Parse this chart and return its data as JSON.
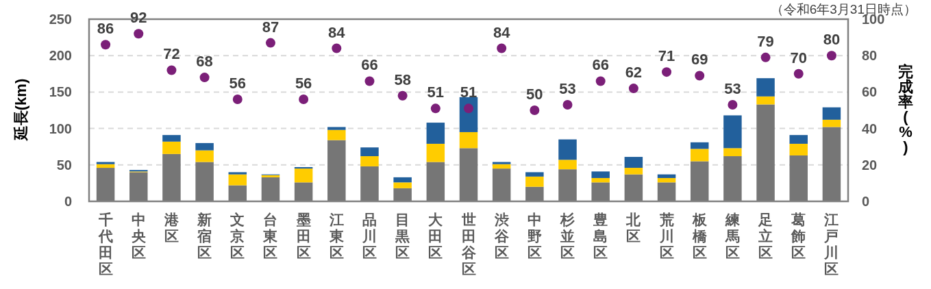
{
  "chart_data": {
    "type": "bar",
    "stacked": true,
    "ylabel": "延長(km)",
    "y2label": "完成率(%)",
    "annotations": [
      "（令和6年3月31日時点）"
    ],
    "categories": [
      "千代田区",
      "中央区",
      "港区",
      "新宿区",
      "文京区",
      "台東区",
      "墨田区",
      "江東区",
      "品川区",
      "目黒区",
      "大田区",
      "世田谷区",
      "渋谷区",
      "中野区",
      "杉並区",
      "豊島区",
      "北区",
      "荒川区",
      "板橋区",
      "練馬区",
      "足立区",
      "葛飾区",
      "江戸川区"
    ],
    "series": [
      {
        "type": "bar",
        "color": "#767676",
        "values": [
          46,
          40,
          65,
          54,
          22,
          33,
          26,
          84,
          48,
          18,
          54,
          73,
          45,
          20,
          44,
          26,
          37,
          26,
          55,
          62,
          133,
          63,
          102
        ]
      },
      {
        "type": "bar",
        "color": "#ffcc00",
        "values": [
          5,
          1,
          17,
          16,
          15,
          3,
          19,
          14,
          14,
          8,
          25,
          22,
          6,
          14,
          13,
          6,
          9,
          6,
          17,
          11,
          11,
          16,
          10
        ]
      },
      {
        "type": "bar",
        "color": "#22609c",
        "values": [
          3,
          2,
          9,
          10,
          3,
          1,
          2,
          4,
          12,
          7,
          29,
          48,
          3,
          6,
          28,
          9,
          15,
          5,
          9,
          45,
          25,
          12,
          17
        ]
      },
      {
        "type": "scatter",
        "axis": "y2",
        "color": "#7b1f78",
        "marker": "circle",
        "data_labels": true,
        "values": [
          86,
          92,
          72,
          68,
          56,
          87,
          56,
          84,
          66,
          58,
          51,
          51,
          84,
          50,
          53,
          66,
          62,
          71,
          69,
          53,
          79,
          70,
          80
        ]
      }
    ],
    "ylim": [
      0,
      250
    ],
    "yticks": [
      0,
      50,
      100,
      150,
      200,
      250
    ],
    "y2lim": [
      0,
      100
    ],
    "y2ticks": [
      0,
      20,
      40,
      60,
      80,
      100
    ],
    "grid": "y"
  }
}
